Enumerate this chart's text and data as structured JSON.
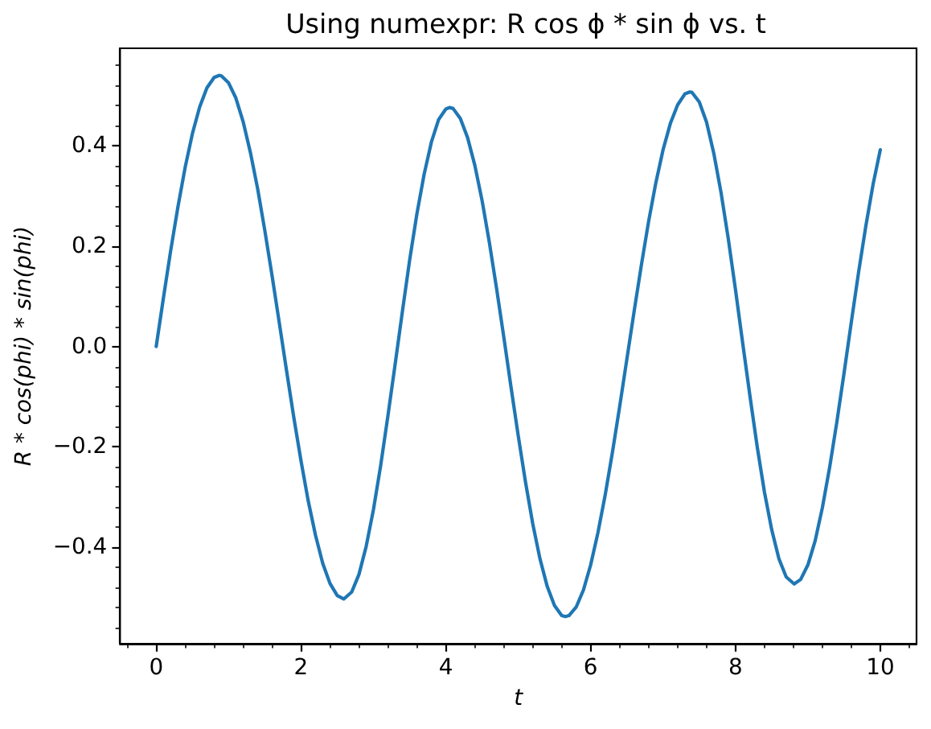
{
  "chart_data": {
    "type": "line",
    "title": "Using numexpr: R cos ϕ * sin ϕ vs. t",
    "xlabel": "t",
    "ylabel": "R * cos(phi) * sin(phi)",
    "color": "#1f77b4",
    "x": [
      0,
      0.1,
      0.2,
      0.3,
      0.4,
      0.5,
      0.6,
      0.7,
      0.8,
      0.87,
      0.9,
      1.0,
      1.1,
      1.2,
      1.3,
      1.4,
      1.5,
      1.6,
      1.7,
      1.8,
      1.9,
      2.0,
      2.1,
      2.2,
      2.3,
      2.4,
      2.5,
      2.59,
      2.7,
      2.8,
      2.9,
      3.0,
      3.1,
      3.2,
      3.3,
      3.4,
      3.5,
      3.6,
      3.7,
      3.8,
      3.9,
      4.0,
      4.05,
      4.1,
      4.2,
      4.3,
      4.4,
      4.5,
      4.6,
      4.7,
      4.8,
      4.9,
      5.0,
      5.1,
      5.2,
      5.3,
      5.4,
      5.5,
      5.6,
      5.65,
      5.7,
      5.8,
      5.9,
      6.0,
      6.1,
      6.2,
      6.3,
      6.4,
      6.5,
      6.6,
      6.7,
      6.8,
      6.9,
      7.0,
      7.1,
      7.2,
      7.3,
      7.37,
      7.4,
      7.5,
      7.6,
      7.7,
      7.8,
      7.9,
      8.0,
      8.1,
      8.2,
      8.3,
      8.4,
      8.5,
      8.6,
      8.7,
      8.81,
      8.9,
      9.0,
      9.1,
      9.2,
      9.3,
      9.4,
      9.5,
      9.6,
      9.7,
      9.8,
      9.9,
      10.0
    ],
    "values": [
      0,
      0.097,
      0.191,
      0.278,
      0.357,
      0.424,
      0.477,
      0.515,
      0.536,
      0.54,
      0.539,
      0.525,
      0.495,
      0.448,
      0.387,
      0.315,
      0.231,
      0.141,
      0.047,
      -0.048,
      -0.141,
      -0.228,
      -0.308,
      -0.376,
      -0.432,
      -0.472,
      -0.496,
      -0.503,
      -0.489,
      -0.454,
      -0.398,
      -0.325,
      -0.237,
      -0.138,
      -0.035,
      0.07,
      0.172,
      0.264,
      0.343,
      0.407,
      0.452,
      0.473,
      0.476,
      0.474,
      0.454,
      0.416,
      0.361,
      0.291,
      0.208,
      0.116,
      0.019,
      -0.081,
      -0.178,
      -0.27,
      -0.353,
      -0.423,
      -0.478,
      -0.516,
      -0.536,
      -0.538,
      -0.536,
      -0.519,
      -0.485,
      -0.435,
      -0.371,
      -0.296,
      -0.211,
      -0.12,
      -0.025,
      0.07,
      0.162,
      0.249,
      0.326,
      0.392,
      0.444,
      0.481,
      0.503,
      0.507,
      0.506,
      0.487,
      0.447,
      0.385,
      0.307,
      0.215,
      0.113,
      0.006,
      -0.099,
      -0.2,
      -0.29,
      -0.365,
      -0.423,
      -0.459,
      -0.473,
      -0.464,
      -0.435,
      -0.387,
      -0.321,
      -0.241,
      -0.15,
      -0.052,
      0.049,
      0.148,
      0.24,
      0.323,
      0.392
    ],
    "xlim": [
      -0.5,
      10.5
    ],
    "ylim": [
      -0.592,
      0.594
    ],
    "xticks": [
      {
        "value": -0.4,
        "label": null
      },
      0,
      {
        "value": 0.4,
        "label": null
      },
      {
        "value": 0.8,
        "label": null
      },
      {
        "value": 1.2,
        "label": null
      },
      {
        "value": 1.6,
        "label": null
      },
      2,
      {
        "value": 2.4,
        "label": null
      },
      {
        "value": 2.8,
        "label": null
      },
      {
        "value": 3.2,
        "label": null
      },
      {
        "value": 3.6,
        "label": null
      },
      4,
      {
        "value": 4.4,
        "label": null
      },
      {
        "value": 4.8,
        "label": null
      },
      {
        "value": 5.2,
        "label": null
      },
      {
        "value": 5.6,
        "label": null
      },
      6,
      {
        "value": 6.4,
        "label": null
      },
      {
        "value": 6.8,
        "label": null
      },
      {
        "value": 7.2,
        "label": null
      },
      {
        "value": 7.6,
        "label": null
      },
      8,
      {
        "value": 8.4,
        "label": null
      },
      {
        "value": 8.8,
        "label": null
      },
      {
        "value": 9.2,
        "label": null
      },
      {
        "value": 9.6,
        "label": null
      },
      10,
      {
        "value": 10.4,
        "label": null
      }
    ],
    "yticks": [
      {
        "value": -0.56,
        "label": null
      },
      {
        "value": -0.52,
        "label": null
      },
      {
        "value": -0.48,
        "label": null
      },
      {
        "value": -0.44,
        "label": null
      },
      {
        "value": -0.4,
        "label": "−0.4"
      },
      {
        "value": -0.36,
        "label": null
      },
      {
        "value": -0.32,
        "label": null
      },
      {
        "value": -0.28,
        "label": null
      },
      {
        "value": -0.24,
        "label": null
      },
      {
        "value": -0.2,
        "label": "−0.2"
      },
      {
        "value": -0.16,
        "label": null
      },
      {
        "value": -0.12,
        "label": null
      },
      {
        "value": -0.08,
        "label": null
      },
      {
        "value": -0.04,
        "label": null
      },
      {
        "value": 0,
        "label": "0.0"
      },
      {
        "value": 0.04,
        "label": null
      },
      {
        "value": 0.08,
        "label": null
      },
      {
        "value": 0.12,
        "label": null
      },
      {
        "value": 0.16,
        "label": null
      },
      0.2,
      {
        "value": 0.24,
        "label": null
      },
      {
        "value": 0.28,
        "label": null
      },
      {
        "value": 0.32,
        "label": null
      },
      {
        "value": 0.36,
        "label": null
      },
      0.4,
      {
        "value": 0.44,
        "label": null
      },
      {
        "value": 0.48,
        "label": null
      },
      {
        "value": 0.52,
        "label": null
      },
      {
        "value": 0.56,
        "label": null
      }
    ]
  }
}
